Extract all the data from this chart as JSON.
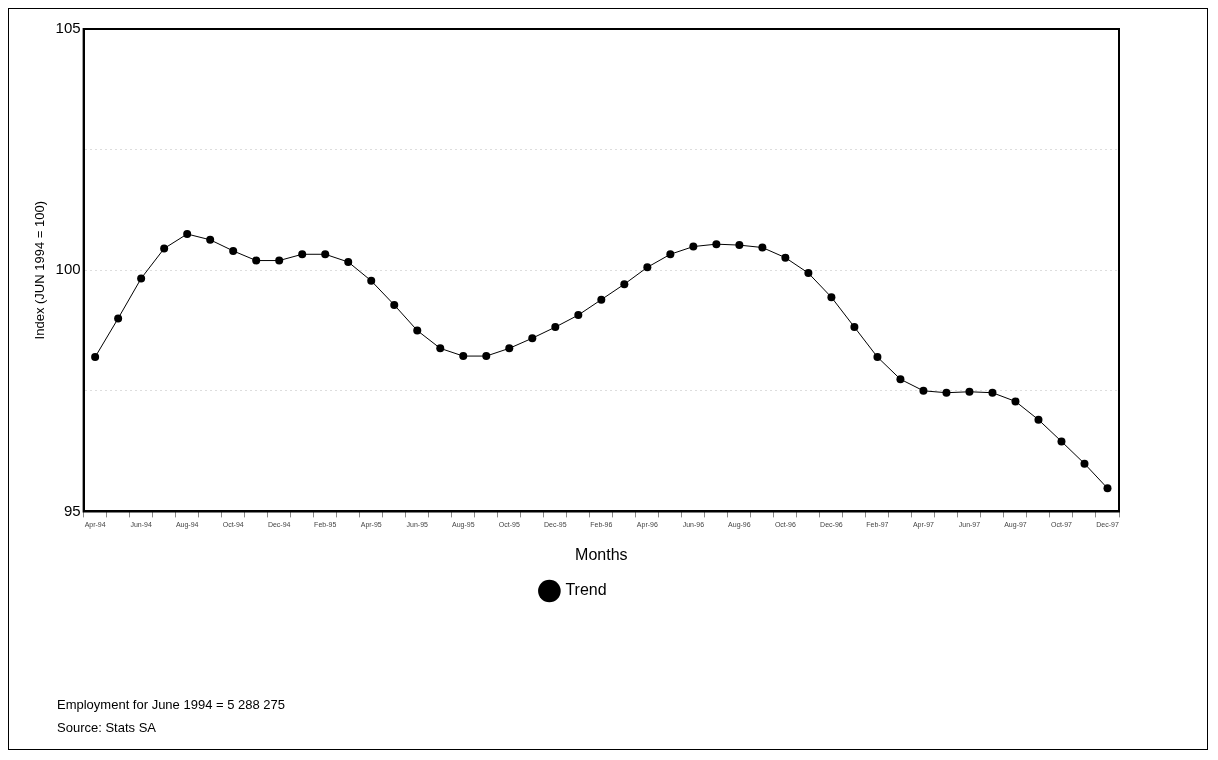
{
  "chart_data": {
    "type": "line",
    "xlabel": "Months",
    "ylabel": "Index (JUN 1994 = 100)",
    "categories": [
      "Apr-94",
      null,
      "Jun-94",
      null,
      "Aug-94",
      null,
      "Oct-94",
      null,
      "Dec-94",
      null,
      "Feb-95",
      null,
      "Apr-95",
      null,
      "Jun-95",
      null,
      "Aug-95",
      null,
      "Oct-95",
      null,
      "Dec-95",
      null,
      "Feb-96",
      null,
      "Apr-96",
      null,
      "Jun-96",
      null,
      "Aug-96",
      null,
      "Oct-96",
      null,
      "Dec-96",
      null,
      "Feb-97",
      null,
      "Apr-97",
      null,
      "Jun-97",
      null,
      "Aug-97",
      null,
      "Oct-97",
      null,
      "Dec-97"
    ],
    "series": [
      {
        "name": "Trend",
        "color": "#000000",
        "values": [
          98.2,
          99.0,
          99.83,
          100.45,
          100.75,
          100.63,
          100.4,
          100.2,
          100.2,
          100.33,
          100.33,
          100.17,
          99.78,
          99.28,
          98.75,
          98.38,
          98.22,
          98.22,
          98.38,
          98.59,
          98.82,
          99.07,
          99.39,
          99.71,
          100.06,
          100.33,
          100.49,
          100.54,
          100.52,
          100.47,
          100.26,
          99.94,
          99.44,
          98.82,
          98.2,
          97.74,
          97.5,
          97.46,
          97.48,
          97.46,
          97.28,
          96.9,
          96.45,
          95.99,
          95.48
        ]
      }
    ],
    "ylim": [
      95,
      105
    ],
    "yticks": [
      95,
      {
        "value": 97.5,
        "label": null
      },
      100,
      {
        "value": 102.5,
        "label": null
      },
      105
    ],
    "grid": "y",
    "legend": "bottom",
    "marker": "circle",
    "line_style": "solid",
    "annotations": [
      "Employment for June 1994 = 5 288 275",
      "Source: Stats SA"
    ]
  }
}
